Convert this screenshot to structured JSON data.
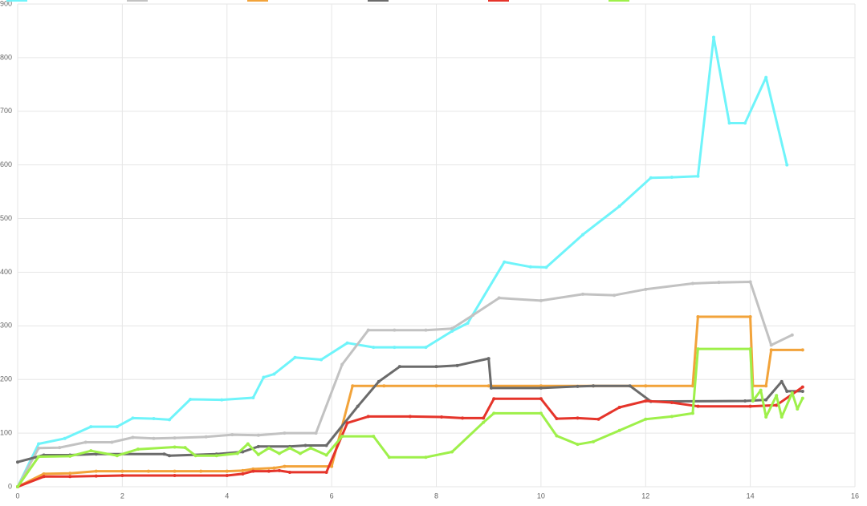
{
  "chart_data": {
    "type": "line",
    "xlim": [
      0,
      16
    ],
    "xticks": [
      0,
      2,
      4,
      6,
      8,
      10,
      12,
      14,
      16
    ],
    "ylim": [
      0,
      900
    ],
    "yticks": [
      0,
      100,
      200,
      300,
      400,
      500,
      600,
      700,
      800,
      900
    ],
    "grid": true,
    "series": [
      {
        "color": "#6ff4fa",
        "x": [
          0,
          0.4,
          0.9,
          1.4,
          1.9,
          2.2,
          2.6,
          2.9,
          3.3,
          3.9,
          4.5,
          4.7,
          4.9,
          5.3,
          5.8,
          6.3,
          6.8,
          7.2,
          7.8,
          8.3,
          8.6,
          9.3,
          9.8,
          10.1,
          10.8,
          11.5,
          12.1,
          12.5,
          13,
          13.3,
          13.6,
          13.9,
          14.3,
          14.7
        ],
        "values": [
          0,
          80,
          90,
          112,
          112,
          128,
          127,
          125,
          163,
          162,
          166,
          204,
          210,
          241,
          237,
          268,
          260,
          260,
          260,
          290,
          305,
          419,
          410,
          409,
          470,
          523,
          576,
          577,
          579,
          838,
          678,
          678,
          763,
          600
        ]
      },
      {
        "color": "#c2c2c2",
        "x": [
          0,
          0.4,
          0.8,
          1.3,
          1.8,
          2.2,
          2.6,
          3,
          3.6,
          4.1,
          4.6,
          5.1,
          5.7,
          6.2,
          6.7,
          7.2,
          7.8,
          8.3,
          8.7,
          9.2,
          10,
          10.8,
          11.4,
          12,
          12.9,
          13.4,
          14,
          14.4,
          14.8
        ],
        "values": [
          0,
          72,
          73,
          83,
          83,
          92,
          90,
          91,
          93,
          97,
          96,
          100,
          100,
          228,
          292,
          292,
          292,
          295,
          320,
          352,
          347,
          359,
          357,
          368,
          379,
          381,
          382,
          264,
          283
        ]
      },
      {
        "color": "#f2a33a",
        "x": [
          0,
          0.5,
          1,
          1.5,
          2,
          2.5,
          3,
          3.5,
          4,
          4.3,
          4.5,
          4.9,
          5.1,
          6,
          6.4,
          7,
          8,
          9,
          10,
          11,
          12,
          12.9,
          13,
          14,
          14.05,
          14.3,
          14.4,
          15
        ],
        "values": [
          0,
          24,
          25,
          29,
          29,
          29,
          29,
          29,
          29,
          30,
          33,
          35,
          38,
          38,
          188,
          188,
          188,
          188,
          188,
          188,
          188,
          188,
          317,
          317,
          188,
          188,
          255,
          255
        ]
      },
      {
        "color": "#6b6b6b",
        "x": [
          0,
          0.5,
          1,
          1.5,
          2.8,
          2.9,
          3.8,
          4.3,
          4.6,
          5.2,
          5.5,
          5.9,
          6.5,
          6.9,
          7.3,
          8,
          8.4,
          9,
          9.05,
          10,
          10.7,
          11,
          11.7,
          12.1,
          13.9,
          14.3,
          14.6,
          14.7,
          15
        ],
        "values": [
          46,
          59,
          59,
          61,
          61,
          58,
          61,
          65,
          75,
          75,
          77,
          77,
          150,
          196,
          224,
          224,
          226,
          239,
          184,
          184,
          187,
          188,
          188,
          159,
          160,
          162,
          196,
          178,
          178
        ]
      },
      {
        "color": "#e5342a",
        "x": [
          0,
          0.5,
          1,
          1.5,
          2,
          3,
          4,
          4.3,
          4.5,
          4.8,
          5,
          5.2,
          5.9,
          6.3,
          6.7,
          7.5,
          8.1,
          8.5,
          8.9,
          9.1,
          10,
          10.3,
          10.7,
          11.1,
          11.5,
          12,
          12.5,
          13,
          14,
          14.5,
          15
        ],
        "values": [
          0,
          19,
          19,
          20,
          21,
          21,
          21,
          24,
          29,
          29,
          30,
          27,
          27,
          119,
          131,
          131,
          130,
          128,
          128,
          164,
          164,
          127,
          128,
          126,
          148,
          160,
          157,
          150,
          150,
          152,
          186
        ]
      },
      {
        "color": "#9ef04a",
        "x": [
          0,
          0.4,
          1,
          1.4,
          1.9,
          2.3,
          3,
          3.2,
          3.4,
          3.8,
          4.2,
          4.4,
          4.6,
          4.8,
          5,
          5.2,
          5.4,
          5.6,
          5.9,
          6.2,
          6.8,
          7.1,
          7.8,
          8.3,
          8.9,
          9.1,
          10,
          10.3,
          10.7,
          11,
          11.5,
          12,
          12.5,
          12.9,
          13,
          14,
          14.05,
          14.2,
          14.3,
          14.5,
          14.6,
          14.8,
          14.9,
          15
        ],
        "values": [
          0,
          56,
          57,
          67,
          58,
          70,
          74,
          73,
          58,
          58,
          62,
          80,
          60,
          72,
          62,
          72,
          62,
          72,
          59,
          94,
          94,
          55,
          55,
          65,
          120,
          137,
          137,
          95,
          79,
          84,
          105,
          126,
          131,
          137,
          257,
          257,
          160,
          180,
          130,
          170,
          130,
          175,
          145,
          165
        ]
      }
    ]
  }
}
